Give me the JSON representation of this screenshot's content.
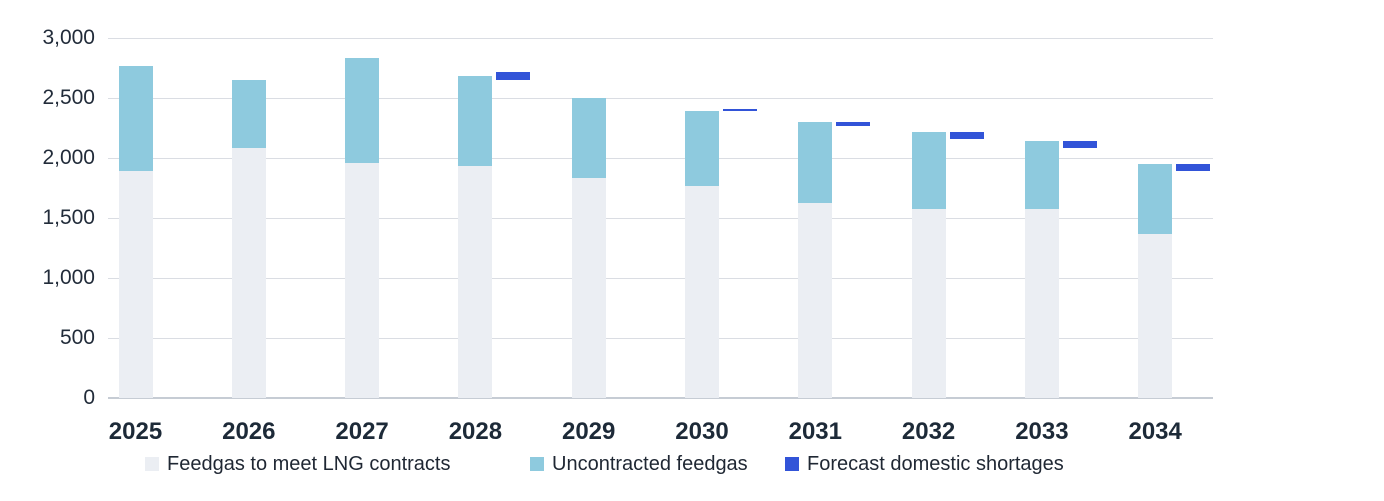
{
  "chart_data": {
    "type": "bar",
    "stacked": true,
    "title": "",
    "xlabel": "",
    "ylabel": "",
    "categories": [
      "2025",
      "2026",
      "2027",
      "2028",
      "2029",
      "2030",
      "2031",
      "2032",
      "2033",
      "2034"
    ],
    "series": [
      {
        "name": "Feedgas to meet LNG contracts",
        "color": "#ebeef3",
        "role": "stacked-column",
        "values": [
          1890,
          2080,
          1960,
          1935,
          1835,
          1765,
          1625,
          1575,
          1575,
          1370
        ]
      },
      {
        "name": "Uncontracted feedgas",
        "color": "#8ecade",
        "role": "stacked-column",
        "values": [
          880,
          570,
          875,
          745,
          665,
          630,
          675,
          645,
          565,
          580
        ]
      },
      {
        "name": "Forecast domestic shortages",
        "color": "#3254d8",
        "role": "floating-tick-beside-column",
        "values": [
          0,
          0,
          0,
          70,
          0,
          15,
          35,
          55,
          55,
          60
        ],
        "top_positions": [
          null,
          null,
          null,
          2720,
          null,
          2405,
          2300,
          2215,
          2140,
          1950
        ]
      }
    ],
    "stack_totals": [
      2770,
      2650,
      2835,
      2680,
      2500,
      2395,
      2300,
      2220,
      2140,
      1950
    ],
    "ylim": [
      0,
      3000
    ],
    "yticks": [
      0,
      500,
      1000,
      1500,
      2000,
      2500,
      3000
    ],
    "ytick_labels": [
      "0",
      "500",
      "1,000",
      "1,500",
      "2,000",
      "2,500",
      "3,000"
    ],
    "grid": "horizontal",
    "legend_position": "bottom",
    "colors": {
      "grid": "#dadde3",
      "axis": "#c6ccd4",
      "tick_text": "#222c3a",
      "category_text": "#1d2a38",
      "legend_text": "#1f2733",
      "background": "#ffffff"
    }
  }
}
